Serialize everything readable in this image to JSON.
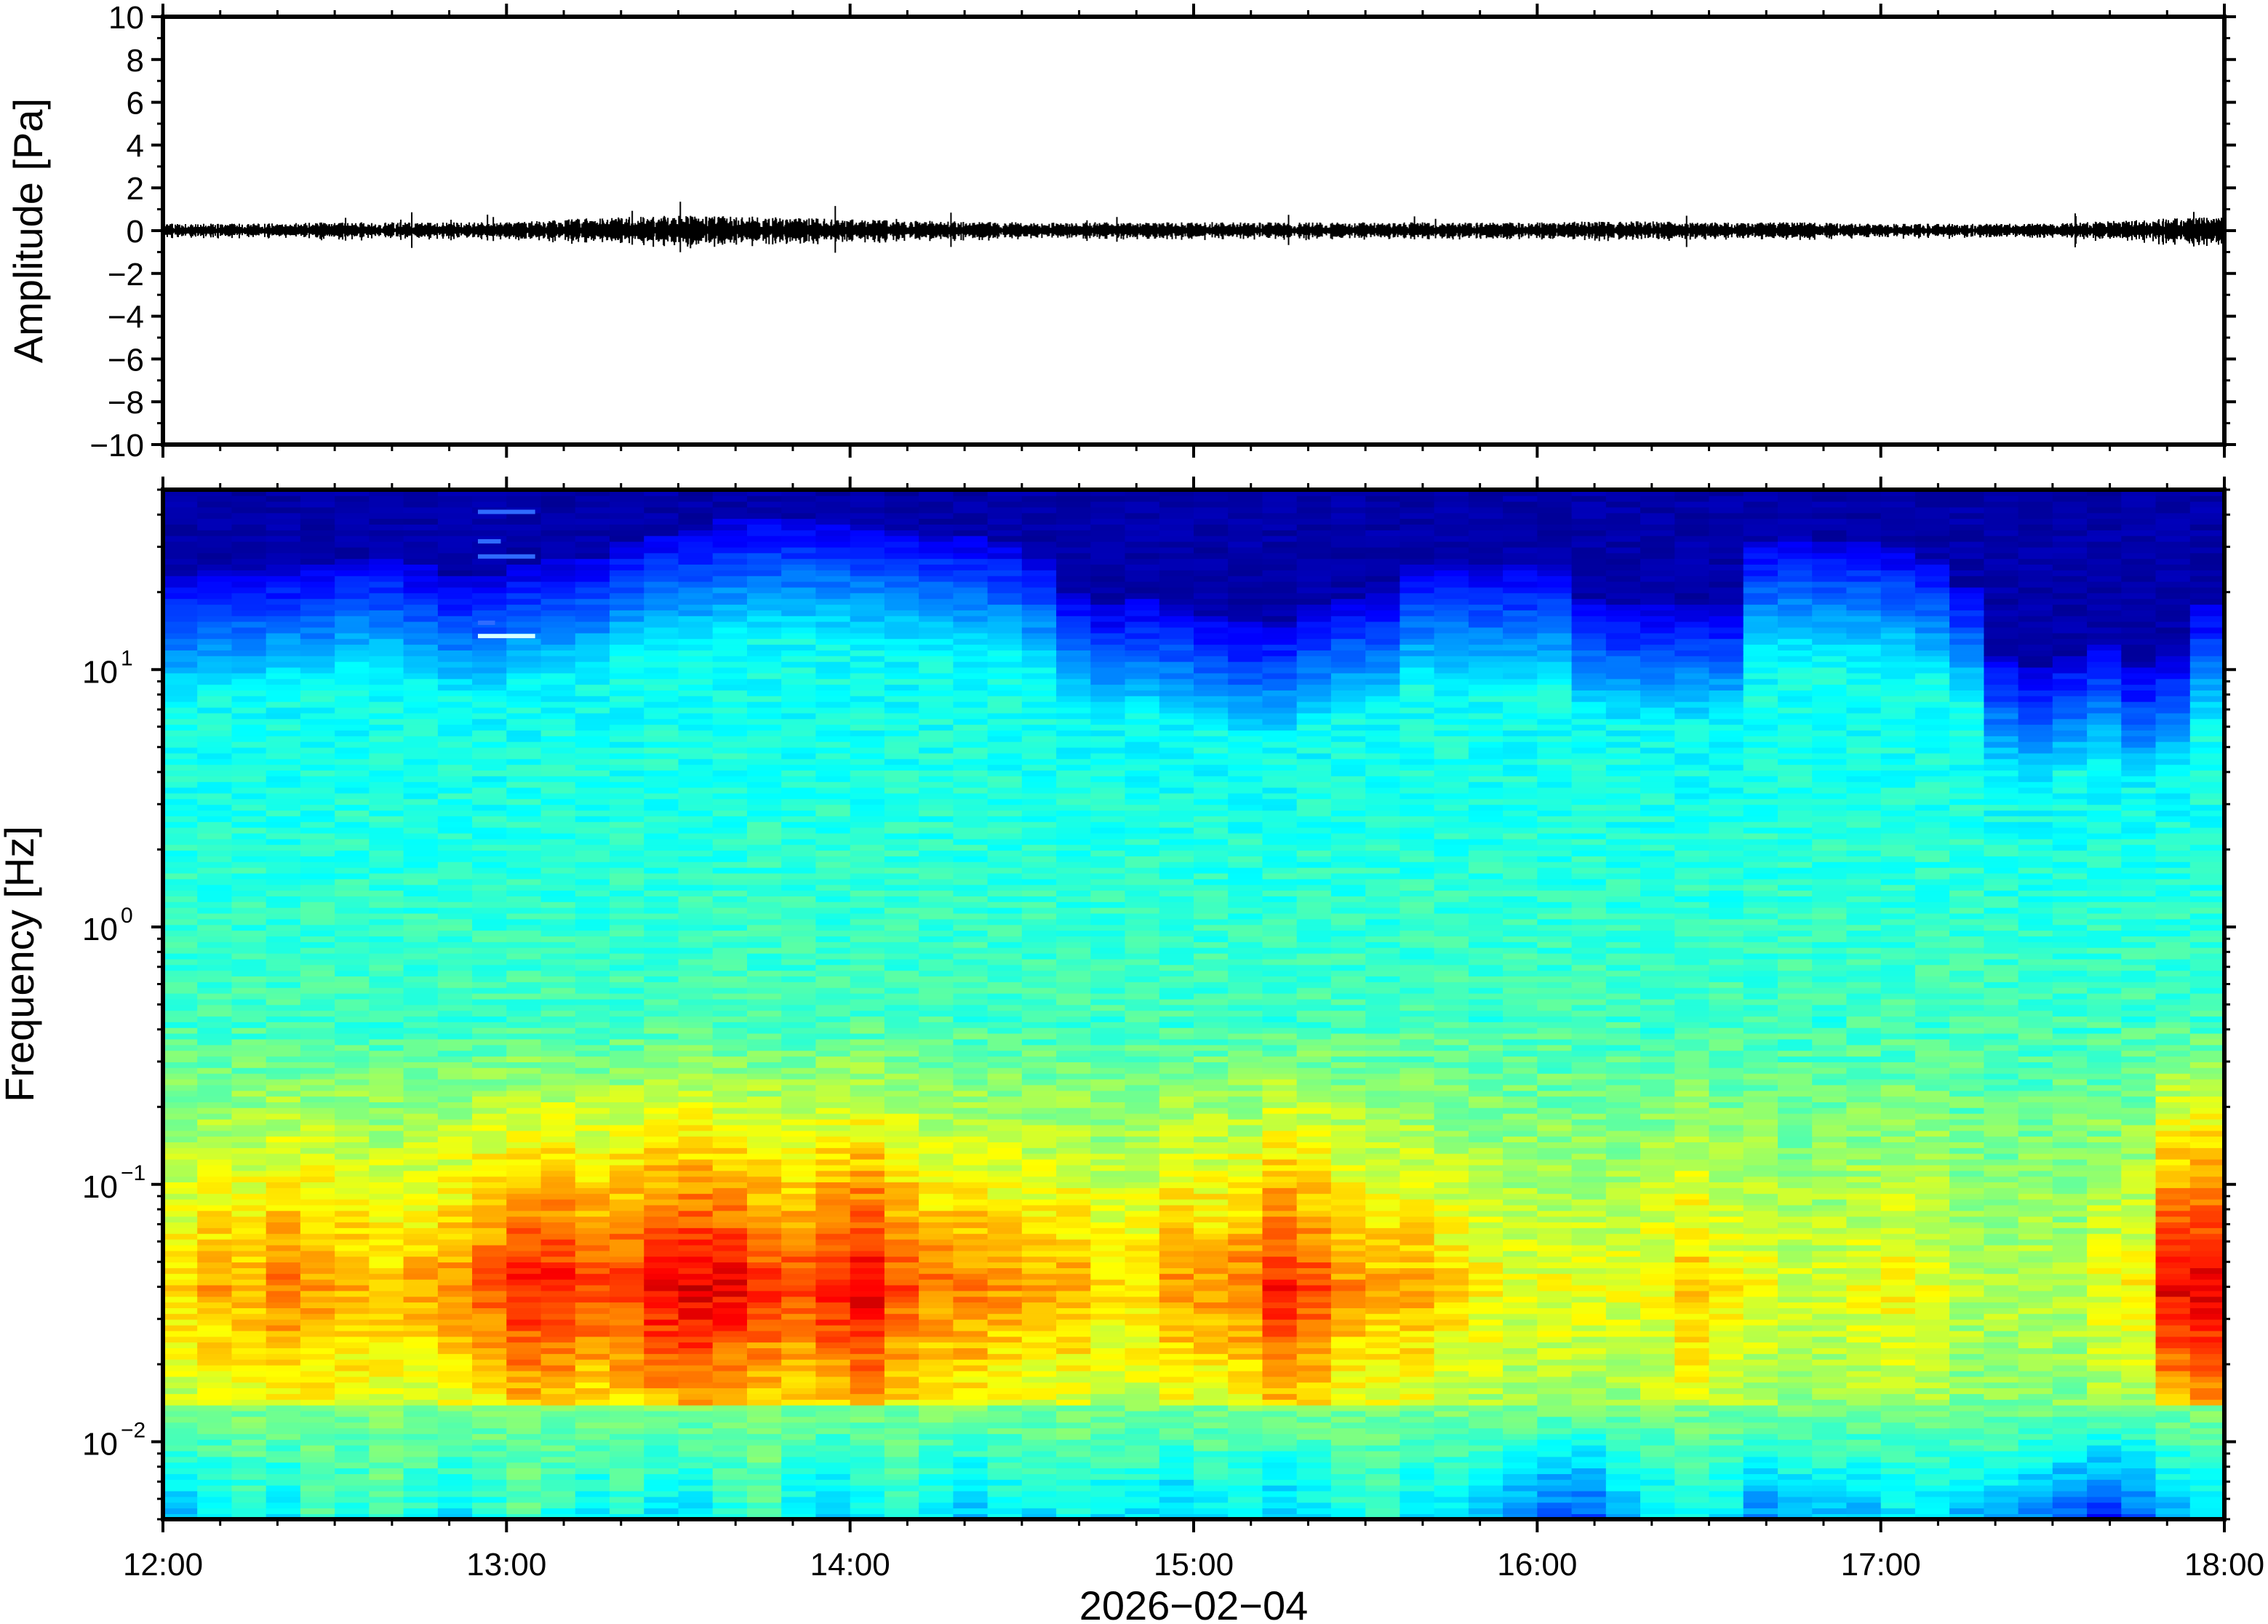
{
  "chart_data": [
    {
      "type": "line",
      "panel": "waveform",
      "title": "",
      "xlabel": "",
      "ylabel": "Amplitude [Pa]",
      "ylim": [
        -10,
        10
      ],
      "yticks": [
        10,
        8,
        6,
        4,
        2,
        0,
        -2,
        -4,
        -6,
        -8,
        -10
      ],
      "ytick_labels": [
        "10",
        "8",
        "6",
        "4",
        "2",
        "0",
        "−2",
        "−4",
        "−6",
        "−8",
        "−10"
      ],
      "grid": false,
      "series": [
        {
          "x_hours": [
            12.0,
            12.25,
            12.5,
            12.75,
            13.0,
            13.25,
            13.5,
            13.75,
            14.0,
            14.25,
            14.5,
            14.75,
            15.0,
            15.25,
            15.5,
            15.75,
            16.0,
            16.25,
            16.5,
            16.75,
            17.0,
            17.25,
            17.5,
            17.75,
            18.0
          ],
          "envelope": [
            0.25,
            0.25,
            0.3,
            0.3,
            0.3,
            0.45,
            0.55,
            0.5,
            0.4,
            0.35,
            0.3,
            0.3,
            0.3,
            0.3,
            0.3,
            0.3,
            0.3,
            0.35,
            0.3,
            0.3,
            0.25,
            0.25,
            0.25,
            0.4,
            0.5
          ]
        }
      ]
    },
    {
      "type": "heatmap",
      "panel": "spectrogram",
      "title": "",
      "xlabel": "2026−02−04",
      "ylabel": "Frequency [Hz]",
      "yscale": "log",
      "ylim": [
        0.005,
        50
      ],
      "yticks": [
        0.01,
        0.1,
        1,
        10
      ],
      "ytick_labels": [
        {
          "base": "10",
          "exp": "−2"
        },
        {
          "base": "10",
          "exp": "−1"
        },
        {
          "base": "10",
          "exp": "0"
        },
        {
          "base": "10",
          "exp": "1"
        }
      ],
      "xlim": [
        "12:00",
        "18:00"
      ],
      "xtick_labels": [
        "12:00",
        "13:00",
        "14:00",
        "15:00",
        "16:00",
        "17:00",
        "18:00"
      ],
      "colormap": "jet",
      "time_columns": 60,
      "upper_cutoff_hz": [
        18,
        19,
        19,
        20,
        20,
        22,
        22,
        20,
        18,
        18,
        20,
        21,
        22,
        25,
        27,
        28,
        30,
        31,
        31,
        30,
        29,
        28,
        27,
        26,
        25,
        22,
        16,
        14,
        15,
        14,
        13,
        12,
        12,
        14,
        15,
        16,
        20,
        20,
        20,
        20,
        20,
        15,
        14,
        14,
        14,
        14,
        25,
        26,
        25,
        25,
        24,
        22,
        17,
        9,
        8,
        9,
        10,
        8,
        9,
        14
      ],
      "low_freq_band_strength": [
        0.65,
        0.7,
        0.7,
        0.75,
        0.72,
        0.7,
        0.68,
        0.7,
        0.72,
        0.78,
        0.85,
        0.85,
        0.8,
        0.82,
        0.88,
        0.9,
        0.88,
        0.82,
        0.8,
        0.85,
        0.9,
        0.8,
        0.75,
        0.75,
        0.72,
        0.7,
        0.7,
        0.65,
        0.65,
        0.72,
        0.72,
        0.75,
        0.85,
        0.8,
        0.72,
        0.7,
        0.7,
        0.65,
        0.62,
        0.6,
        0.6,
        0.6,
        0.6,
        0.62,
        0.68,
        0.62,
        0.6,
        0.58,
        0.58,
        0.6,
        0.62,
        0.6,
        0.55,
        0.55,
        0.55,
        0.55,
        0.6,
        0.62,
        0.88,
        0.9
      ],
      "lowest_band_strength": [
        0.3,
        0.35,
        0.4,
        0.35,
        0.45,
        0.4,
        0.45,
        0.4,
        0.35,
        0.4,
        0.45,
        0.4,
        0.35,
        0.4,
        0.35,
        0.35,
        0.4,
        0.45,
        0.35,
        0.3,
        0.35,
        0.4,
        0.35,
        0.3,
        0.35,
        0.35,
        0.4,
        0.35,
        0.35,
        0.3,
        0.35,
        0.35,
        0.3,
        0.35,
        0.4,
        0.4,
        0.35,
        0.35,
        0.3,
        0.25,
        0.2,
        0.2,
        0.3,
        0.35,
        0.4,
        0.35,
        0.25,
        0.3,
        0.3,
        0.3,
        0.35,
        0.35,
        0.3,
        0.3,
        0.25,
        0.2,
        0.15,
        0.2,
        0.3,
        0.35
      ],
      "tones": [
        {
          "time": "12:55",
          "freq_hz": 13.5,
          "duration_min": 10
        },
        {
          "time": "12:55",
          "freq_hz": 15.2,
          "duration_min": 3
        },
        {
          "time": "12:55",
          "freq_hz": 27.5,
          "duration_min": 10
        },
        {
          "time": "12:55",
          "freq_hz": 31.5,
          "duration_min": 4
        },
        {
          "time": "12:55",
          "freq_hz": 41.0,
          "duration_min": 10
        }
      ],
      "grid": false
    }
  ]
}
